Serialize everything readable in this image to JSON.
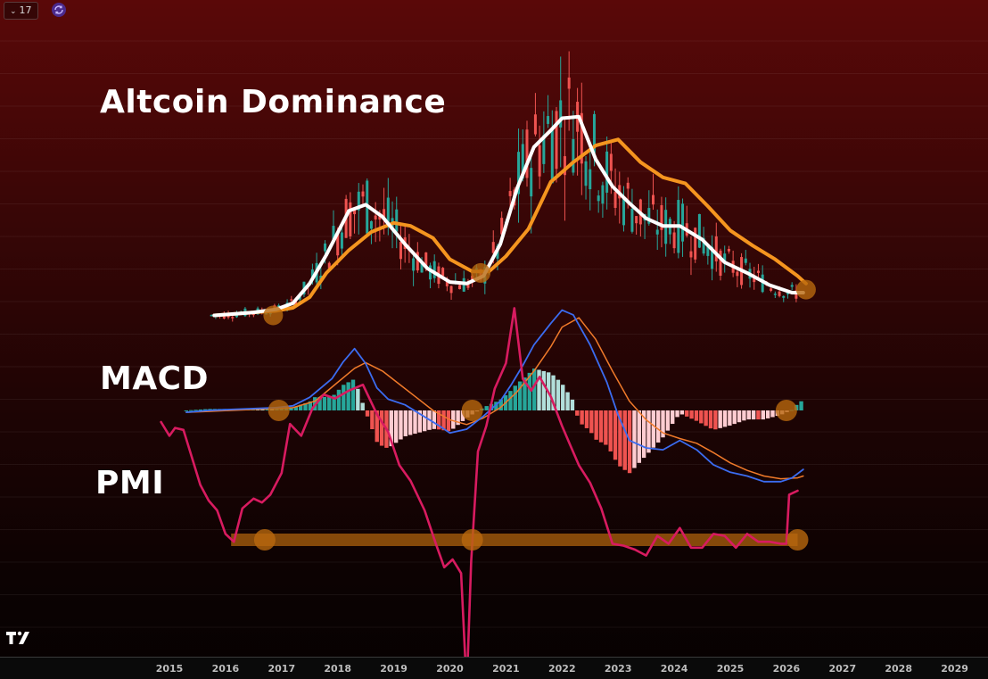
{
  "toolbar": {
    "interval_label": "17"
  },
  "titles": {
    "main": "Altcoin Dominance",
    "macd": "MACD",
    "pmi": "PMI"
  },
  "colors": {
    "ma_white": "#ffffff",
    "ma_orange": "#f5951f",
    "candle_up": "#26a69a",
    "candle_down": "#ef5350",
    "macd_line": "#3b6cf0",
    "signal_line": "#f07a2a",
    "hist_pos_strong": "#26a69a",
    "hist_pos_weak": "#b2dfdb",
    "hist_neg_strong": "#ef5350",
    "hist_neg_weak": "#ffcdd2",
    "pmi_line": "#d81b60",
    "highlight": "#b8680e"
  },
  "chart_data": [
    {
      "type": "line",
      "title": "Altcoin Dominance",
      "x_axis_years": [
        "2015",
        "2016",
        "2017",
        "2018",
        "2019",
        "2020",
        "2021",
        "2022",
        "2023",
        "2024",
        "2025",
        "2026",
        "2027",
        "2028",
        "2029"
      ],
      "series": [
        {
          "key": "ma_fast",
          "x": [
            2015.8,
            2016.5,
            2016.9,
            2017.2,
            2017.5,
            2017.8,
            2018.2,
            2018.5,
            2018.8,
            2019.2,
            2019.6,
            2020.0,
            2020.3,
            2020.6,
            2020.9,
            2021.2,
            2021.5,
            2021.8,
            2022.0,
            2022.3,
            2022.6,
            2022.9,
            2023.2,
            2023.5,
            2023.8,
            2024.1,
            2024.5,
            2024.9,
            2025.3,
            2025.7,
            2026.1,
            2026.3
          ],
          "y": [
            0.05,
            0.07,
            0.09,
            0.13,
            0.26,
            0.45,
            0.74,
            0.78,
            0.7,
            0.52,
            0.36,
            0.27,
            0.26,
            0.31,
            0.52,
            0.89,
            1.16,
            1.27,
            1.35,
            1.36,
            1.08,
            0.9,
            0.79,
            0.69,
            0.64,
            0.64,
            0.55,
            0.4,
            0.33,
            0.25,
            0.2,
            0.2
          ]
        },
        {
          "key": "ma_slow",
          "x": [
            2015.8,
            2016.5,
            2016.9,
            2017.2,
            2017.5,
            2017.8,
            2018.2,
            2018.6,
            2019.0,
            2019.3,
            2019.7,
            2020.0,
            2020.4,
            2020.7,
            2021.0,
            2021.4,
            2021.8,
            2022.2,
            2022.6,
            2023.0,
            2023.4,
            2023.8,
            2024.2,
            2024.6,
            2025.0,
            2025.4,
            2025.8,
            2026.2,
            2026.35
          ],
          "y": [
            0.05,
            0.07,
            0.08,
            0.1,
            0.17,
            0.33,
            0.48,
            0.6,
            0.66,
            0.64,
            0.56,
            0.42,
            0.34,
            0.34,
            0.44,
            0.62,
            0.93,
            1.06,
            1.17,
            1.21,
            1.06,
            0.96,
            0.92,
            0.77,
            0.61,
            0.51,
            0.42,
            0.31,
            0.26
          ]
        }
      ]
    },
    {
      "type": "line",
      "title": "MACD",
      "series": [
        {
          "key": "macd",
          "x": [
            2015.3,
            2015.7,
            2016.1,
            2016.5,
            2016.9,
            2017.2,
            2017.5,
            2017.9,
            2018.1,
            2018.3,
            2018.5,
            2018.7,
            2018.9,
            2019.2,
            2019.5,
            2019.8,
            2020.0,
            2020.3,
            2020.6,
            2020.9,
            2021.1,
            2021.3,
            2021.5,
            2021.8,
            2022.0,
            2022.2,
            2022.5,
            2022.8,
            2023.0,
            2023.2,
            2023.5,
            2023.8,
            2024.1,
            2024.4,
            2024.7,
            2025.0,
            2025.3,
            2025.6,
            2025.9,
            2026.1,
            2026.3
          ],
          "y": [
            -0.02,
            0.0,
            0.01,
            0.02,
            0.03,
            0.05,
            0.14,
            0.34,
            0.52,
            0.66,
            0.5,
            0.24,
            0.12,
            0.06,
            -0.05,
            -0.16,
            -0.24,
            -0.2,
            -0.06,
            0.1,
            0.28,
            0.48,
            0.7,
            0.93,
            1.07,
            1.02,
            0.7,
            0.3,
            -0.05,
            -0.32,
            -0.4,
            -0.42,
            -0.32,
            -0.42,
            -0.58,
            -0.66,
            -0.7,
            -0.76,
            -0.76,
            -0.72,
            -0.63
          ]
        },
        {
          "key": "signal",
          "x": [
            2015.3,
            2015.7,
            2016.1,
            2016.5,
            2016.9,
            2017.2,
            2017.6,
            2018.0,
            2018.3,
            2018.5,
            2018.8,
            2019.1,
            2019.4,
            2019.7,
            2020.0,
            2020.3,
            2020.6,
            2020.9,
            2021.2,
            2021.5,
            2021.8,
            2022.0,
            2022.3,
            2022.6,
            2022.9,
            2023.2,
            2023.5,
            2023.8,
            2024.1,
            2024.4,
            2024.7,
            2025.0,
            2025.3,
            2025.6,
            2025.9,
            2026.2,
            2026.3
          ],
          "y": [
            -0.02,
            -0.01,
            0.0,
            0.01,
            0.02,
            0.03,
            0.1,
            0.3,
            0.45,
            0.51,
            0.42,
            0.28,
            0.14,
            0.0,
            -0.1,
            -0.15,
            -0.08,
            0.03,
            0.2,
            0.42,
            0.68,
            0.89,
            0.99,
            0.76,
            0.42,
            0.1,
            -0.1,
            -0.24,
            -0.3,
            -0.35,
            -0.45,
            -0.56,
            -0.64,
            -0.7,
            -0.73,
            -0.72,
            -0.7
          ]
        }
      ]
    },
    {
      "type": "line",
      "title": "PMI",
      "series": [
        {
          "key": "pmi",
          "x": [
            2014.85,
            2015.0,
            2015.1,
            2015.25,
            2015.4,
            2015.55,
            2015.7,
            2015.85,
            2016.0,
            2016.15,
            2016.3,
            2016.5,
            2016.65,
            2016.8,
            2017.0,
            2017.15,
            2017.35,
            2017.55,
            2017.75,
            2017.95,
            2018.2,
            2018.45,
            2018.7,
            2018.9,
            2019.1,
            2019.3,
            2019.55,
            2019.75,
            2019.9,
            2020.05,
            2020.2,
            2020.3,
            2020.38,
            2020.5,
            2020.65,
            2020.8,
            2021.0,
            2021.15,
            2021.3,
            2021.45,
            2021.6,
            2021.8,
            2022.0,
            2022.15,
            2022.3,
            2022.5,
            2022.7,
            2022.9,
            2023.1,
            2023.3,
            2023.5,
            2023.7,
            2023.9,
            2024.1,
            2024.3,
            2024.5,
            2024.7,
            2024.9,
            2025.1,
            2025.3,
            2025.5,
            2025.7,
            2025.9,
            2026.0,
            2026.05,
            2026.2
          ],
          "y": [
            56.0,
            55.3,
            55.7,
            55.6,
            54.2,
            52.8,
            52.0,
            51.5,
            50.3,
            49.9,
            51.6,
            52.1,
            51.9,
            52.3,
            53.4,
            55.9,
            55.3,
            56.7,
            57.4,
            57.2,
            57.6,
            57.9,
            56.4,
            55.5,
            53.8,
            53.0,
            51.5,
            49.8,
            48.6,
            49.0,
            48.3,
            42.4,
            48.9,
            54.5,
            55.8,
            57.7,
            59.0,
            61.8,
            58.2,
            57.6,
            58.3,
            57.3,
            55.8,
            54.8,
            53.8,
            52.9,
            51.6,
            49.8,
            49.7,
            49.5,
            49.2,
            50.2,
            49.8,
            50.6,
            49.6,
            49.6,
            50.3,
            50.2,
            49.6,
            50.3,
            49.9,
            49.9,
            49.8,
            49.8,
            52.3,
            52.5
          ]
        }
      ]
    }
  ]
}
